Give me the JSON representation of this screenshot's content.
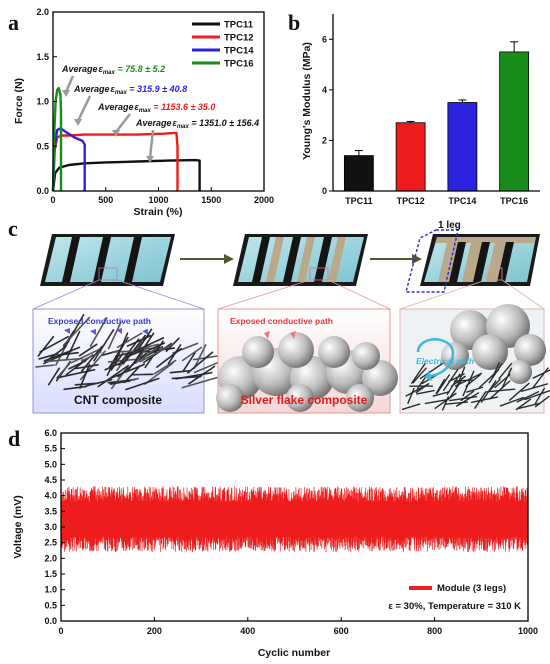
{
  "panels": {
    "a": {
      "letter": "a",
      "chart_data": {
        "type": "line",
        "xlabel": "Strain (%)",
        "ylabel": "Force (N)",
        "xlim": [
          0,
          2000
        ],
        "ylim": [
          0,
          2.0
        ],
        "xticks": [
          0,
          500,
          1000,
          1500,
          2000
        ],
        "yticks": [
          0.0,
          0.5,
          1.0,
          1.5,
          2.0
        ],
        "legend_position": "top-right",
        "series": [
          {
            "name": "TPC11",
            "color": "#111111",
            "x": [
              0,
              20,
              60,
              150,
              300,
              500,
              800,
              1100,
              1350,
              1390,
              1390
            ],
            "y": [
              0,
              0.2,
              0.26,
              0.29,
              0.31,
              0.32,
              0.33,
              0.34,
              0.345,
              0.34,
              0.0
            ]
          },
          {
            "name": "TPC12",
            "color": "#ee1c1c",
            "x": [
              0,
              15,
              40,
              80,
              150,
              300,
              500,
              800,
              1050,
              1170,
              1180,
              1180
            ],
            "y": [
              0,
              0.45,
              0.6,
              0.62,
              0.62,
              0.63,
              0.63,
              0.63,
              0.64,
              0.65,
              0.5,
              0.0
            ]
          },
          {
            "name": "TPC14",
            "color": "#2b22e0",
            "x": [
              0,
              15,
              40,
              70,
              120,
              200,
              280,
              300,
              300
            ],
            "y": [
              0,
              0.5,
              0.68,
              0.7,
              0.66,
              0.6,
              0.56,
              0.52,
              0.0
            ]
          },
          {
            "name": "TPC16",
            "color": "#1a8c1a",
            "x": [
              0,
              10,
              25,
              40,
              55,
              70,
              76,
              76
            ],
            "y": [
              0,
              0.6,
              1.0,
              1.13,
              1.15,
              1.08,
              0.9,
              0.0
            ]
          }
        ],
        "annotations": [
          {
            "prefix": "Average",
            "symbol": "ε",
            "sub": "max",
            "value": " = 75.8 ± 5.2",
            "color": "#1a8c1a"
          },
          {
            "prefix": "Average",
            "symbol": "ε",
            "sub": "max",
            "value": " = 315.9 ± 40.8",
            "color": "#2b22e0"
          },
          {
            "prefix": "Average",
            "symbol": "ε",
            "sub": "max",
            "value": " = 1153.6 ± 35.0",
            "color": "#ee1c1c"
          },
          {
            "prefix": "Average",
            "symbol": "ε",
            "sub": "max",
            "value": " = 1351.0 ± 156.4",
            "color": "#111111"
          }
        ]
      }
    },
    "b": {
      "letter": "b",
      "chart_data": {
        "type": "bar",
        "categories": [
          "TPC11",
          "TPC12",
          "TPC14",
          "TPC16"
        ],
        "values": [
          1.4,
          2.7,
          3.5,
          5.5
        ],
        "errors": [
          0.2,
          0.05,
          0.1,
          0.4
        ],
        "colors": [
          "#111111",
          "#ee1c1c",
          "#2b22e0",
          "#1a8c1a"
        ],
        "ylabel": "Young's Modulus (MPa)",
        "ylim": [
          0,
          7
        ],
        "yticks": [
          0,
          2,
          4,
          6
        ]
      }
    },
    "c": {
      "letter": "c",
      "leg_label": "1 leg",
      "path_label_1": "Exposed conductive path",
      "path_label_2": "Exposed conductive path",
      "electrical_label": "Electrical path",
      "caption_1": "CNT composite",
      "caption_2": "Silver flake composite"
    },
    "d": {
      "letter": "d",
      "chart_data": {
        "type": "line",
        "xlabel": "Cyclic number",
        "ylabel": "Voltage (mV)",
        "xlim": [
          0,
          1000
        ],
        "ylim": [
          0.0,
          6.0
        ],
        "xticks": [
          0,
          200,
          400,
          600,
          800,
          1000
        ],
        "yticks": [
          0.0,
          0.5,
          1.0,
          1.5,
          2.0,
          2.5,
          3.0,
          3.5,
          4.0,
          4.5,
          5.0,
          5.5,
          6.0
        ],
        "series": [
          {
            "name": "Module (3 legs)",
            "color": "#ee1c1c",
            "cycles": 1000,
            "min": 2.2,
            "max": 4.3
          }
        ],
        "legend_position": "bottom-right",
        "condition_text": "ε = 30%, Temperature = 310 K"
      }
    }
  }
}
